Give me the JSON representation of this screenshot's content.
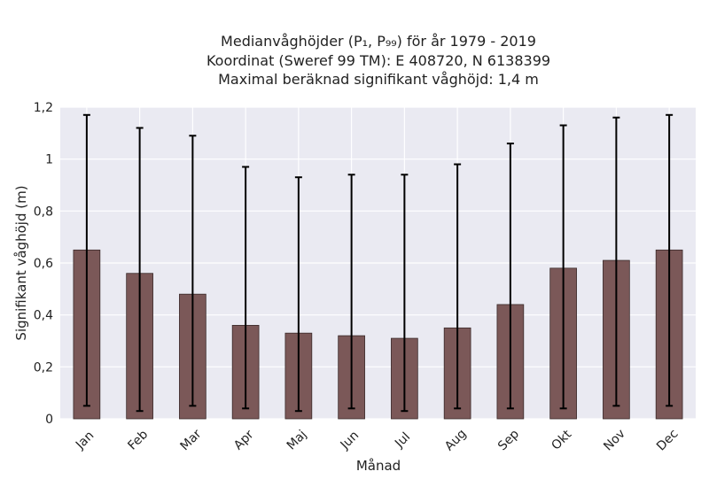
{
  "chart_data": {
    "type": "bar",
    "title_lines": [
      "Medianvåghöjder (P₁, P₉₉) för år 1979 - 2019",
      "Koordinat (Sweref 99 TM): E 408720, N 6138399",
      "Maximal beräknad signifikant våghöjd: 1,4 m"
    ],
    "xlabel": "Månad",
    "ylabel": "Signifikant våghöjd (m)",
    "categories": [
      "Jan",
      "Feb",
      "Mar",
      "Apr",
      "Maj",
      "Jun",
      "Jul",
      "Aug",
      "Sep",
      "Okt",
      "Nov",
      "Dec"
    ],
    "values": [
      0.65,
      0.56,
      0.48,
      0.36,
      0.33,
      0.32,
      0.31,
      0.35,
      0.44,
      0.58,
      0.61,
      0.65
    ],
    "p1": [
      0.05,
      0.03,
      0.05,
      0.04,
      0.03,
      0.04,
      0.03,
      0.04,
      0.04,
      0.04,
      0.05,
      0.05
    ],
    "p99": [
      1.17,
      1.12,
      1.09,
      0.97,
      0.93,
      0.94,
      0.94,
      0.98,
      1.06,
      1.13,
      1.16,
      1.17
    ],
    "ylim": [
      0,
      1.2
    ],
    "yticks": [
      "0",
      "0,2",
      "0,4",
      "0,6",
      "0,8",
      "1",
      "1,2"
    ],
    "ytick_values": [
      0,
      0.2,
      0.4,
      0.6,
      0.8,
      1.0,
      1.2
    ],
    "grid": true,
    "colors": {
      "bar": "#7b5858",
      "plot_bg": "#eaeaf2",
      "error": "#000000"
    }
  }
}
